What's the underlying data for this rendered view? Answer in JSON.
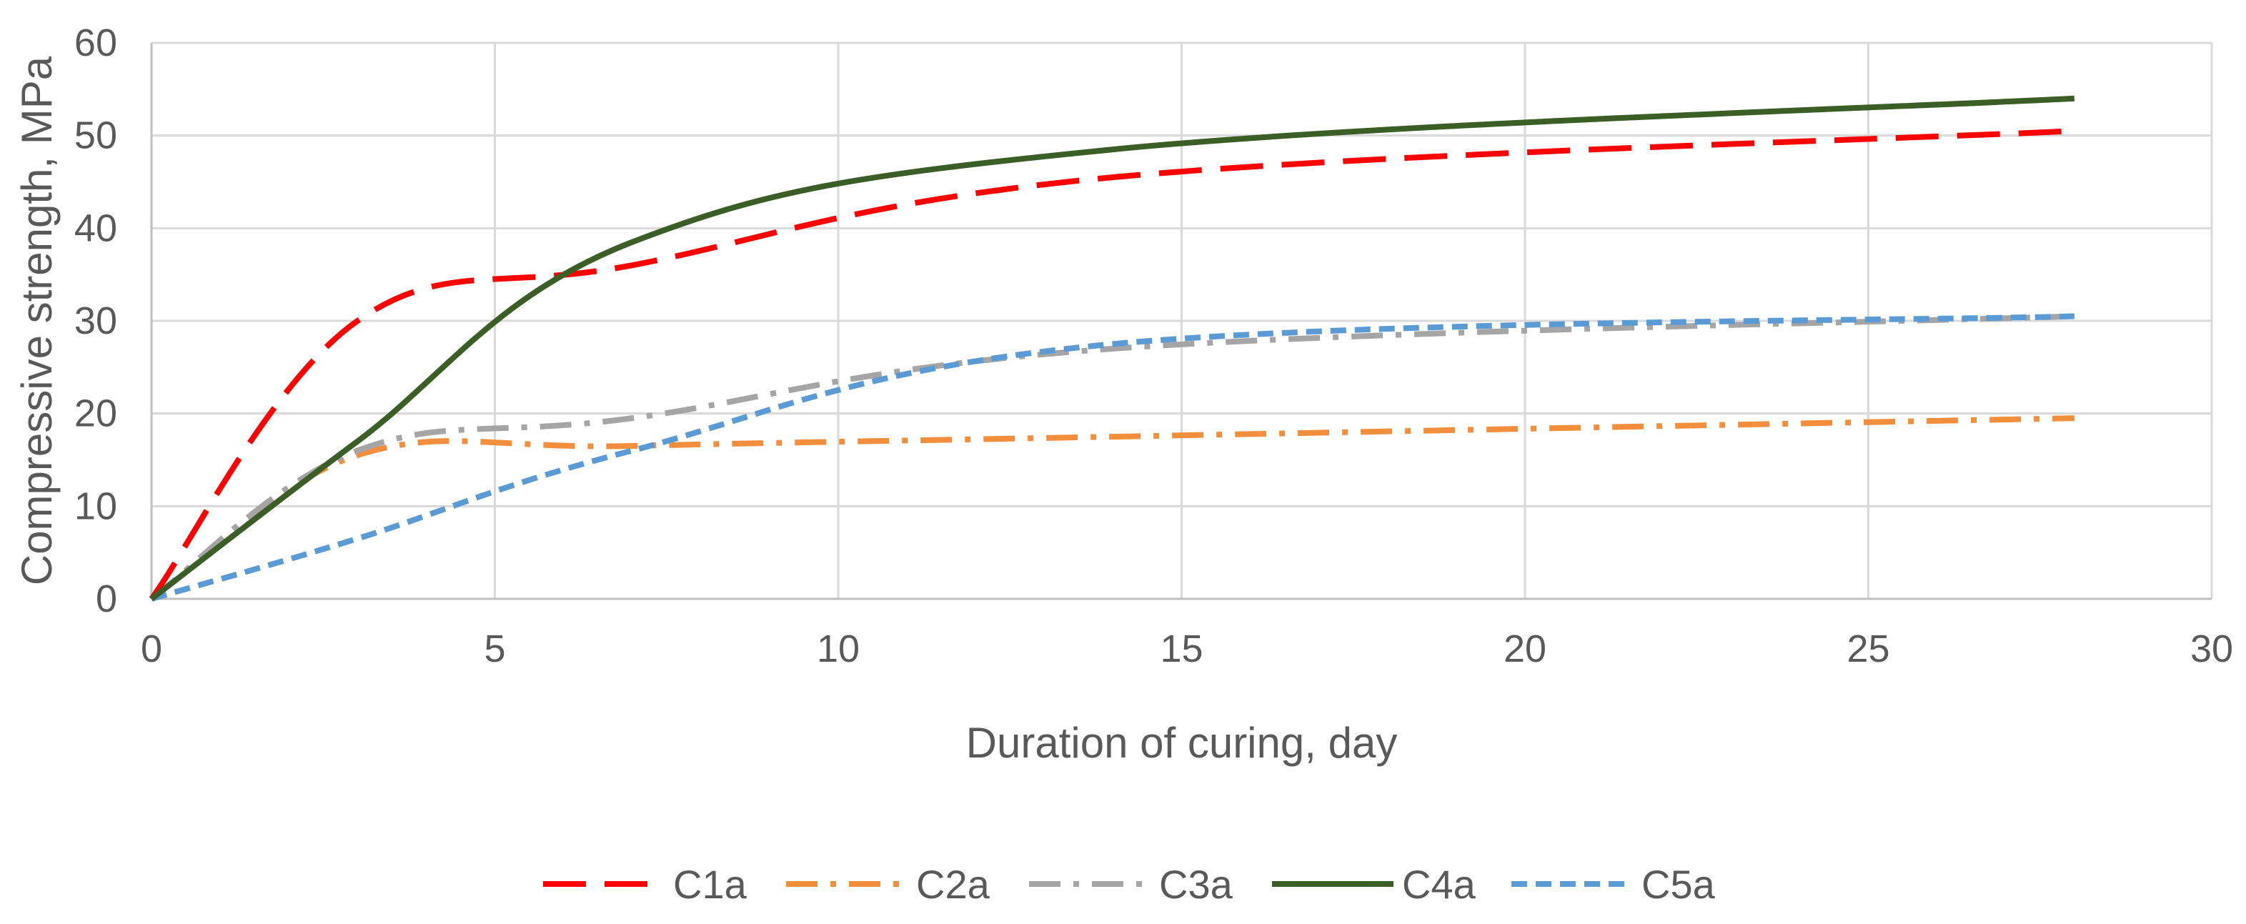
{
  "chart_data": {
    "type": "line",
    "title": "",
    "xlabel": "Duration of curing, day",
    "ylabel": "Compressive strength, MPa",
    "xlim": [
      0,
      30
    ],
    "ylim": [
      0,
      60
    ],
    "xticks": [
      0,
      5,
      10,
      15,
      20,
      25,
      30
    ],
    "yticks": [
      0,
      10,
      20,
      30,
      40,
      50,
      60
    ],
    "grid": true,
    "legend_position": "bottom",
    "x": [
      0,
      3,
      7,
      14,
      28
    ],
    "series": [
      {
        "name": "C1a",
        "values": [
          0,
          30,
          36,
          45.5,
          50.5
        ],
        "color": "#ff0000",
        "dash": "long-dash"
      },
      {
        "name": "C2a",
        "values": [
          0,
          15.5,
          16.5,
          17.5,
          19.5
        ],
        "color": "#f28e3c",
        "dash": "dash-dot"
      },
      {
        "name": "C3a",
        "values": [
          0,
          16,
          19.5,
          27,
          30.5
        ],
        "color": "#a5a5a5",
        "dash": "dash-dot"
      },
      {
        "name": "C4a",
        "values": [
          0,
          17,
          38.5,
          48.5,
          54
        ],
        "color": "#3b5e26",
        "dash": "solid"
      },
      {
        "name": "C5a",
        "values": [
          0,
          6.5,
          16,
          27.5,
          30.5
        ],
        "color": "#5b9bd5",
        "dash": "short-dash"
      }
    ]
  }
}
